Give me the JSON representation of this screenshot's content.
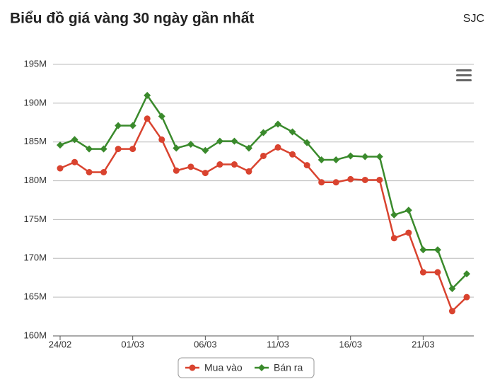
{
  "chart_data": {
    "type": "line",
    "title": "Biểu đồ giá vàng 30 ngày gần nhất",
    "subtitle": "SJC",
    "categories": [
      "24/02",
      null,
      null,
      null,
      null,
      "01/03",
      null,
      null,
      null,
      null,
      "06/03",
      null,
      null,
      null,
      null,
      "11/03",
      null,
      null,
      null,
      null,
      "16/03",
      null,
      null,
      null,
      null,
      "21/03",
      null,
      null,
      null
    ],
    "series": [
      {
        "name": "Mua vào",
        "color": "#d9432f",
        "marker": "circle",
        "values": [
          181600000,
          182400000,
          181100000,
          181100000,
          184100000,
          184100000,
          188000000,
          185300000,
          181300000,
          181800000,
          181000000,
          182100000,
          182100000,
          181200000,
          183200000,
          184300000,
          183400000,
          182000000,
          179800000,
          179800000,
          180200000,
          180100000,
          180100000,
          172600000,
          173300000,
          168200000,
          168200000,
          163200000,
          165000000
        ]
      },
      {
        "name": "Bán ra",
        "color": "#3a8a2c",
        "marker": "diamond",
        "values": [
          184600000,
          185300000,
          184100000,
          184100000,
          187100000,
          187100000,
          191000000,
          188300000,
          184200000,
          184700000,
          183900000,
          185100000,
          185100000,
          184200000,
          186200000,
          187300000,
          186300000,
          184900000,
          182700000,
          182700000,
          183200000,
          183100000,
          183100000,
          175600000,
          176200000,
          171100000,
          171100000,
          166100000,
          168000000
        ]
      }
    ],
    "ylim": [
      160000000,
      195000000
    ],
    "yticks": [
      {
        "value": 160000000,
        "label": "160M"
      },
      {
        "value": 165000000,
        "label": "165M"
      },
      {
        "value": 170000000,
        "label": "170M"
      },
      {
        "value": 175000000,
        "label": "175M"
      },
      {
        "value": 180000000,
        "label": "180M"
      },
      {
        "value": 185000000,
        "label": "185M"
      },
      {
        "value": 190000000,
        "label": "190M"
      },
      {
        "value": 195000000,
        "label": "195M"
      }
    ],
    "grid": true,
    "legend": "bottom"
  }
}
